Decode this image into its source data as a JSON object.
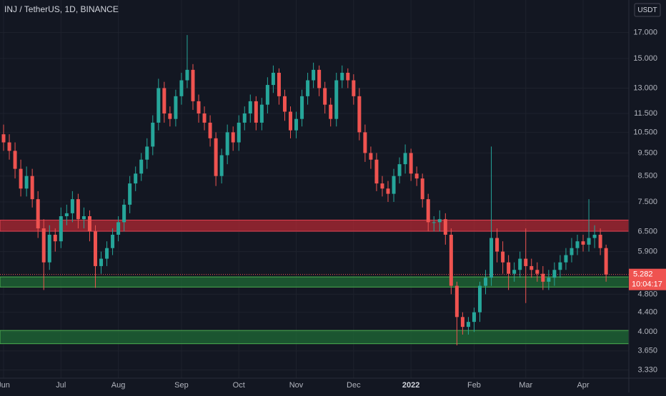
{
  "chart_data": {
    "type": "candlestick",
    "title": "INJ / TetherUS, 1D, BINANCE",
    "currency": "USDT",
    "countdown": "10:04:17",
    "log_scale": true,
    "grid": true,
    "up_color": "#26a69a",
    "down_color": "#ef5350",
    "categories": [
      "Jun",
      null,
      null,
      null,
      null,
      null,
      null,
      null,
      null,
      null,
      "Jul",
      null,
      null,
      null,
      null,
      null,
      null,
      null,
      null,
      null,
      "Aug",
      null,
      null,
      null,
      null,
      null,
      null,
      null,
      null,
      null,
      null,
      "Sep",
      null,
      null,
      null,
      null,
      null,
      null,
      null,
      null,
      null,
      "Oct",
      null,
      null,
      null,
      null,
      null,
      null,
      null,
      null,
      null,
      "Nov",
      null,
      null,
      null,
      null,
      null,
      null,
      null,
      null,
      null,
      "Dec",
      null,
      null,
      null,
      null,
      null,
      null,
      null,
      null,
      null,
      "2022",
      null,
      null,
      null,
      null,
      null,
      null,
      null,
      null,
      null,
      null,
      "Feb",
      null,
      null,
      null,
      null,
      null,
      null,
      null,
      null,
      "Mar",
      null,
      null,
      null,
      null,
      null,
      null,
      null,
      null,
      null,
      "Apr",
      null,
      null,
      null,
      null
    ],
    "open": [
      10.4,
      10.0,
      9.6,
      8.8,
      8.0,
      8.5,
      7.6,
      6.6,
      5.6,
      6.4,
      6.2,
      7.0,
      7.1,
      7.6,
      6.9,
      7.0,
      6.5,
      5.5,
      5.7,
      6.0,
      6.4,
      6.8,
      7.4,
      8.2,
      8.6,
      9.2,
      9.8,
      11.0,
      13.0,
      11.5,
      11.2,
      12.5,
      13.5,
      14.2,
      12.2,
      11.5,
      11.0,
      10.2,
      8.5,
      9.4,
      10.5,
      10.0,
      11.0,
      11.5,
      12.2,
      11.0,
      12.0,
      13.2,
      14.0,
      12.5,
      11.6,
      10.6,
      11.2,
      12.5,
      13.5,
      14.2,
      13.0,
      12.0,
      11.2,
      13.5,
      14.0,
      13.5,
      12.5,
      10.5,
      9.5,
      9.2,
      8.2,
      8.0,
      7.8,
      8.5,
      9.0,
      9.5,
      8.6,
      8.4,
      7.6,
      6.8,
      6.8,
      6.9,
      6.4,
      5.0,
      4.3,
      4.1,
      4.2,
      4.4,
      5.0,
      5.2,
      6.3,
      5.9,
      5.6,
      5.3,
      5.4,
      5.7,
      5.5,
      5.4,
      5.3,
      5.1,
      5.2,
      5.4,
      5.6,
      5.8,
      6.0,
      6.2,
      6.1,
      6.3,
      6.4,
      6.0
    ],
    "high": [
      10.9,
      10.4,
      10.0,
      9.2,
      8.9,
      8.8,
      7.9,
      6.9,
      6.7,
      6.6,
      7.3,
      7.4,
      7.9,
      7.8,
      7.3,
      7.2,
      6.7,
      5.9,
      6.2,
      6.6,
      7.0,
      7.6,
      8.5,
      8.9,
      9.5,
      10.2,
      11.4,
      13.6,
      13.4,
      11.9,
      12.9,
      14.0,
      16.8,
      14.6,
      12.6,
      11.9,
      11.4,
      10.5,
      9.7,
      10.9,
      10.8,
      11.4,
      11.9,
      12.6,
      12.5,
      12.4,
      13.7,
      14.5,
      14.3,
      12.9,
      11.9,
      11.6,
      12.9,
      14.0,
      14.7,
      14.5,
      13.4,
      12.4,
      14.0,
      14.5,
      14.3,
      13.9,
      13.0,
      10.9,
      9.8,
      9.5,
      8.5,
      8.3,
      8.8,
      9.3,
      9.9,
      9.7,
      8.9,
      8.6,
      7.8,
      7.0,
      7.2,
      7.1,
      6.6,
      5.1,
      4.4,
      4.3,
      4.5,
      5.1,
      5.4,
      9.8,
      6.6,
      6.2,
      5.8,
      5.6,
      5.9,
      6.6,
      5.7,
      5.6,
      5.5,
      5.4,
      5.6,
      5.8,
      6.0,
      6.3,
      6.4,
      6.4,
      7.6,
      6.7,
      6.6,
      6.1
    ],
    "low": [
      9.6,
      9.2,
      8.4,
      7.7,
      7.7,
      7.3,
      6.3,
      4.9,
      5.4,
      5.9,
      6.0,
      6.7,
      6.8,
      6.6,
      6.6,
      6.2,
      4.95,
      5.3,
      5.5,
      5.8,
      6.2,
      6.5,
      7.1,
      7.9,
      8.3,
      8.8,
      9.4,
      10.6,
      11.0,
      10.8,
      10.8,
      12.0,
      13.0,
      11.7,
      11.0,
      10.6,
      9.8,
      8.1,
      8.2,
      9.0,
      9.6,
      9.6,
      10.6,
      11.0,
      10.6,
      10.6,
      11.5,
      12.7,
      12.0,
      11.1,
      10.2,
      10.2,
      10.8,
      12.0,
      13.0,
      12.5,
      11.5,
      10.8,
      10.8,
      13.0,
      13.0,
      12.0,
      10.1,
      9.1,
      8.8,
      7.9,
      7.7,
      7.5,
      7.5,
      8.2,
      8.6,
      8.3,
      8.1,
      7.3,
      6.5,
      6.5,
      6.5,
      6.1,
      4.8,
      3.75,
      3.95,
      3.95,
      4.0,
      4.2,
      4.8,
      5.0,
      5.6,
      5.3,
      4.9,
      5.1,
      5.2,
      4.6,
      5.2,
      5.1,
      4.9,
      4.9,
      5.0,
      5.2,
      5.4,
      5.6,
      5.8,
      5.9,
      5.9,
      6.0,
      5.8,
      5.1
    ],
    "close": [
      10.0,
      9.6,
      8.8,
      8.0,
      8.5,
      7.6,
      6.6,
      5.6,
      6.4,
      6.2,
      7.0,
      7.1,
      7.6,
      6.9,
      7.0,
      6.5,
      5.5,
      5.7,
      6.0,
      6.4,
      6.8,
      7.4,
      8.2,
      8.6,
      9.2,
      9.8,
      11.0,
      13.0,
      11.5,
      11.2,
      12.5,
      13.5,
      14.2,
      12.2,
      11.5,
      11.0,
      10.2,
      8.5,
      9.4,
      10.5,
      10.0,
      11.0,
      11.5,
      12.2,
      11.0,
      12.0,
      13.2,
      14.0,
      12.5,
      11.6,
      10.6,
      11.2,
      12.5,
      13.5,
      14.2,
      13.0,
      12.0,
      11.2,
      13.5,
      14.0,
      13.5,
      12.5,
      10.5,
      9.5,
      9.2,
      8.2,
      8.0,
      7.8,
      8.5,
      9.0,
      9.5,
      8.6,
      8.4,
      7.6,
      6.8,
      6.8,
      6.9,
      6.4,
      5.0,
      4.3,
      4.1,
      4.2,
      4.4,
      5.0,
      5.2,
      6.3,
      5.9,
      5.6,
      5.3,
      5.4,
      5.7,
      5.5,
      5.4,
      5.3,
      5.1,
      5.2,
      5.4,
      5.6,
      5.8,
      6.0,
      6.2,
      6.1,
      6.3,
      6.4,
      6.0,
      5.282
    ],
    "zones": [
      {
        "low": 6.51,
        "high": 6.87,
        "color": "#b22833"
      },
      {
        "low": 4.97,
        "high": 5.22,
        "color": "#1f6b35"
      },
      {
        "low": 3.78,
        "high": 4.03,
        "color": "#1f6b35"
      }
    ],
    "ylim": [
      3.2,
      19.9
    ],
    "yticks": [
      {
        "value": 3.33,
        "label": "3.330"
      },
      {
        "value": 3.65,
        "label": "3.650"
      },
      {
        "value": 4.0,
        "label": "4.000"
      },
      {
        "value": 4.4,
        "label": "4.400"
      },
      {
        "value": 4.8,
        "label": "4.800"
      },
      {
        "value": 5.9,
        "label": "5.900"
      },
      {
        "value": 6.5,
        "label": "6.500"
      },
      {
        "value": 7.5,
        "label": "7.500"
      },
      {
        "value": 8.5,
        "label": "8.500"
      },
      {
        "value": 9.5,
        "label": "9.500"
      },
      {
        "value": 10.5,
        "label": "10.500"
      },
      {
        "value": 11.5,
        "label": "11.500"
      },
      {
        "value": 13.0,
        "label": "13.000"
      },
      {
        "value": 15.0,
        "label": "15.000"
      },
      {
        "value": 17.0,
        "label": "17.000"
      }
    ]
  }
}
